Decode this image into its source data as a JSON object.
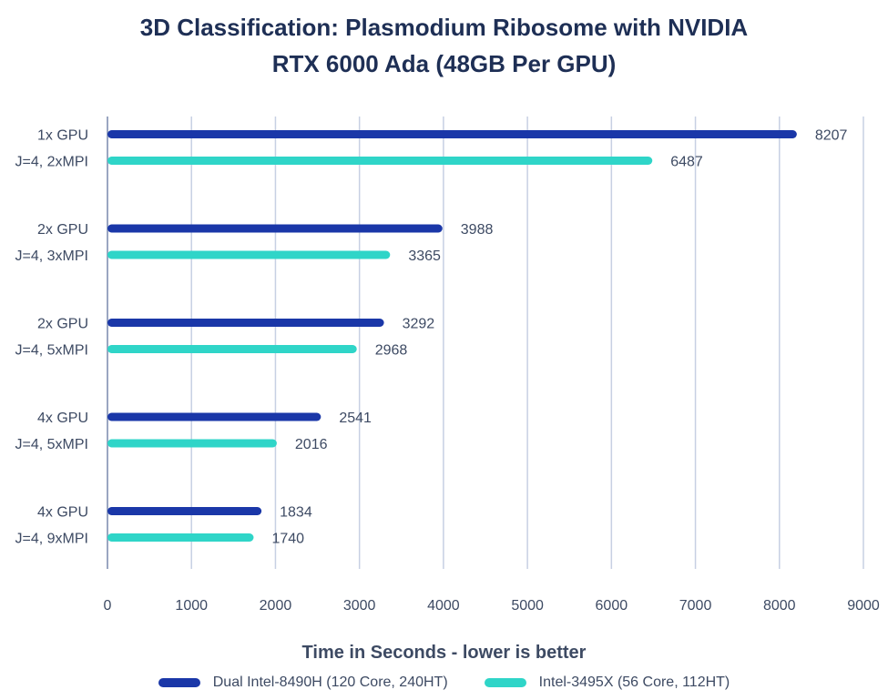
{
  "chart_data": {
    "type": "bar",
    "orientation": "horizontal",
    "title": [
      "3D Classification: Plasmodium Ribosome with NVIDIA",
      "RTX 6000 Ada (48GB Per GPU)"
    ],
    "xlabel": "Time in Seconds - lower is better",
    "ylabel": "",
    "xlim": [
      0,
      9000
    ],
    "x_ticks": [
      "0",
      "1000",
      "2000",
      "3000",
      "4000",
      "5000",
      "6000",
      "7000",
      "8000",
      "9000"
    ],
    "grid": "vertical",
    "legend_position": "bottom",
    "categories": [
      [
        "1x GPU",
        "J=4, 2xMPI"
      ],
      [
        "2x GPU",
        "J=4, 3xMPI"
      ],
      [
        "2x GPU",
        "J=4, 5xMPI"
      ],
      [
        "4x GPU",
        "J=4, 5xMPI"
      ],
      [
        "4x GPU",
        "J=4, 9xMPI"
      ]
    ],
    "series": [
      {
        "name": "Dual Intel-8490H (120 Core, 240HT)",
        "color": "#1a37a8",
        "values": [
          8207,
          3988,
          3292,
          2541,
          1834
        ],
        "labels": [
          "8207",
          "3988",
          "3292",
          "2541",
          "1834"
        ]
      },
      {
        "name": "Intel-3495X (56 Core, 112HT)",
        "color": "#2fd5c8",
        "values": [
          6487,
          3365,
          2968,
          2016,
          1740
        ],
        "labels": [
          "6487",
          "3365",
          "2968",
          "2016",
          "1740"
        ]
      }
    ]
  },
  "colors": {
    "title": "#1e2f55",
    "text": "#3d4a63",
    "grid": "#c7d0e3",
    "axis": "#9aa6c1"
  }
}
